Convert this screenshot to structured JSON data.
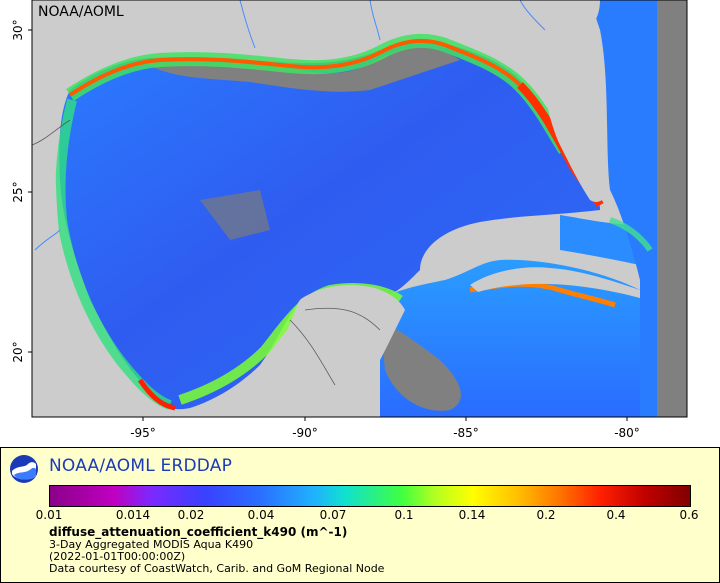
{
  "map": {
    "corner_label": "NOAA/AOML",
    "lat_ticks": [
      "30°",
      "25°",
      "20°"
    ],
    "lon_ticks": [
      "-95°",
      "-90°",
      "-85°",
      "-80°"
    ]
  },
  "legend": {
    "title": "NOAA/AOML ERDDAP",
    "logo_icon": "noaa-logo-icon",
    "tick_labels": [
      "0.01",
      "0.014",
      "0.02",
      "0.04",
      "0.07",
      "0.1",
      "0.14",
      "0.2",
      "0.4",
      "0.6"
    ],
    "variable": "diffuse_attenuation_coefficient_k490 (m^-1)",
    "description": "3-Day Aggregated MODIS Aqua K490",
    "time": "(2022-01-01T00:00:00Z)",
    "credit": "Data courtesy of CoastWatch, Carib. and GoM Regional Node"
  },
  "colors": {
    "land": "#cccccc",
    "no_data": "#808080",
    "border": "#5a5a5a",
    "rivers": "#4a8cff",
    "legend_bg": "#ffffcc",
    "title_color": "#1a3ab8"
  }
}
